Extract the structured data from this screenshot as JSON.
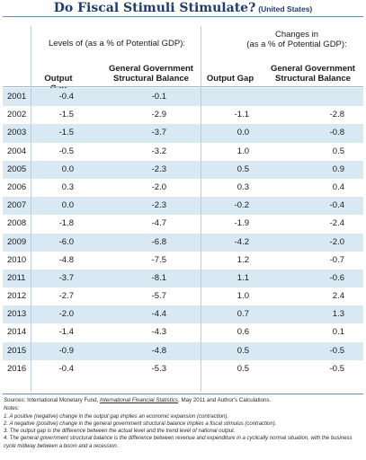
{
  "title": {
    "main": "Do Fiscal Stimuli Stimulate?",
    "sub": "(United States)"
  },
  "header": {
    "levels_group": "Levels of (as a % of Potential GDP):",
    "changes_group_line1": "Changes in",
    "changes_group_line2": "(as a % of Potential GDP):",
    "col1": "Output Gap",
    "col2_line1": "General Government",
    "col2_line2": "Structural Balance",
    "col3": "Output Gap",
    "col4_line1": "General Government",
    "col4_line2": "Structural Balance"
  },
  "rows": [
    {
      "year": "2001",
      "og": "-0.4",
      "sb": "-0.1",
      "dog": "",
      "dsb": ""
    },
    {
      "year": "2002",
      "og": "-1.5",
      "sb": "-2.9",
      "dog": "-1.1",
      "dsb": "-2.8"
    },
    {
      "year": "2003",
      "og": "-1.5",
      "sb": "-3.7",
      "dog": "0.0",
      "dsb": "-0.8"
    },
    {
      "year": "2004",
      "og": "-0.5",
      "sb": "-3.2",
      "dog": "1.0",
      "dsb": "0.5"
    },
    {
      "year": "2005",
      "og": "0.0",
      "sb": "-2.3",
      "dog": "0.5",
      "dsb": "0.9"
    },
    {
      "year": "2006",
      "og": "0.3",
      "sb": "-2.0",
      "dog": "0.3",
      "dsb": "0.4"
    },
    {
      "year": "2007",
      "og": "0.0",
      "sb": "-2.3",
      "dog": "-0.2",
      "dsb": "-0.4"
    },
    {
      "year": "2008",
      "og": "-1.8",
      "sb": "-4.7",
      "dog": "-1.9",
      "dsb": "-2.4"
    },
    {
      "year": "2009",
      "og": "-6.0",
      "sb": "-6.8",
      "dog": "-4.2",
      "dsb": "-2.0"
    },
    {
      "year": "2010",
      "og": "-4.8",
      "sb": "-7.5",
      "dog": "1.2",
      "dsb": "-0.7"
    },
    {
      "year": "2011",
      "og": "-3.7",
      "sb": "-8.1",
      "dog": "1.1",
      "dsb": "-0.6"
    },
    {
      "year": "2012",
      "og": "-2.7",
      "sb": "-5.7",
      "dog": "1.0",
      "dsb": "2.4"
    },
    {
      "year": "2013",
      "og": "-2.0",
      "sb": "-4.4",
      "dog": "0.7",
      "dsb": "1.3"
    },
    {
      "year": "2014",
      "og": "-1.4",
      "sb": "-4.3",
      "dog": "0.6",
      "dsb": "0.1"
    },
    {
      "year": "2015",
      "og": "-0.9",
      "sb": "-4.8",
      "dog": "0.5",
      "dsb": "-0.5"
    },
    {
      "year": "2016",
      "og": "-0.4",
      "sb": "-5.3",
      "dog": "0.5",
      "dsb": "-0.5"
    }
  ],
  "notes": {
    "sources_label": "Sources:",
    "sources_text_a": "International Monetary Fund,",
    "sources_link": "International Financial Statistics",
    "sources_text_b": ", May 2011 and Author's Calculations.",
    "notes_label": "Notes:",
    "items": [
      "1. A positive (negative) change in the output gap implies an economic expansion (contraction).",
      "2. A negative (positive) change in the general government structural balance implies a fiscal stimulus (contraction).",
      "3. The output gap is the difference between the actual level and the trend level of national output.",
      "4. The general government structural balance is the difference between revenue and expenditure in a cyclically normal situation, with the business cycle midway between a boom and a recession."
    ]
  }
}
